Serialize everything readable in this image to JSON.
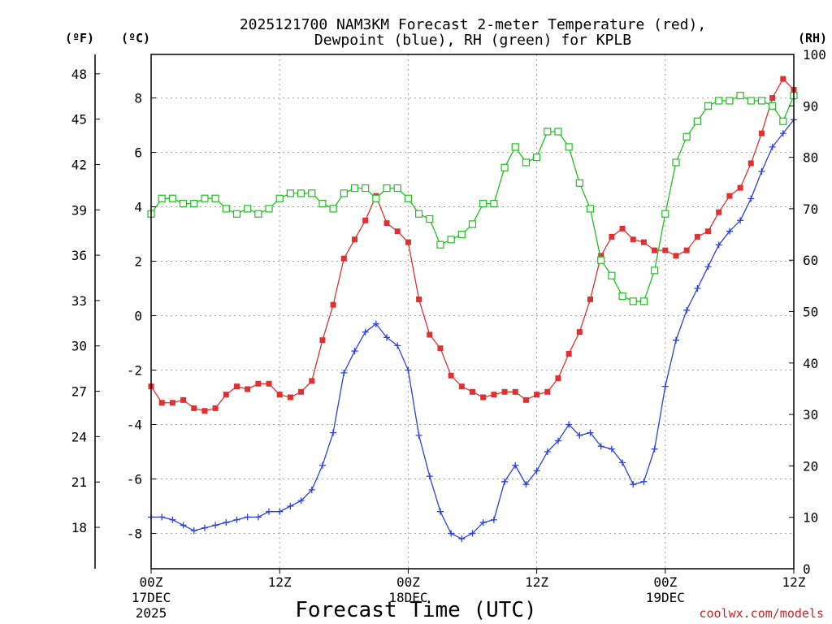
{
  "chart_data": {
    "type": "line",
    "title_line1": "2025121700 NAM3KM Forecast 2-meter Temperature (red),",
    "title_line2": "Dewpoint (blue), RH (green) for KPLB",
    "xlabel": "Forecast Time (UTC)",
    "credit": "coolwx.com/models",
    "units": {
      "fahrenheit": "(ºF)",
      "celsius": "(ºC)",
      "rh": "(RH)"
    },
    "x_range_hours": [
      0,
      60
    ],
    "x_ticks": [
      {
        "hour": 0,
        "label": "00Z",
        "sub1": "17DEC",
        "sub2": "2025"
      },
      {
        "hour": 12,
        "label": "12Z",
        "sub1": "",
        "sub2": ""
      },
      {
        "hour": 24,
        "label": "00Z",
        "sub1": "18DEC",
        "sub2": ""
      },
      {
        "hour": 36,
        "label": "12Z",
        "sub1": "",
        "sub2": ""
      },
      {
        "hour": 48,
        "label": "00Z",
        "sub1": "19DEC",
        "sub2": ""
      },
      {
        "hour": 60,
        "label": "12Z",
        "sub1": "",
        "sub2": ""
      }
    ],
    "ylim_celsius": [
      -9.3,
      9.6
    ],
    "celsius_ticks": [
      -8,
      -6,
      -4,
      -2,
      0,
      2,
      4,
      6,
      8
    ],
    "fahrenheit_ticks": [
      18,
      21,
      24,
      27,
      30,
      33,
      36,
      39,
      42,
      45,
      48
    ],
    "ylim_rh": [
      0,
      100
    ],
    "rh_ticks": [
      0,
      10,
      20,
      30,
      40,
      50,
      60,
      70,
      80,
      90,
      100
    ],
    "series": [
      {
        "name": "Temperature",
        "units": "C",
        "color": "#e03030",
        "marker": "filled-square",
        "hours": [
          0,
          1,
          2,
          3,
          4,
          5,
          6,
          7,
          8,
          9,
          10,
          11,
          12,
          13,
          14,
          15,
          16,
          17,
          18,
          19,
          20,
          21,
          22,
          23,
          24,
          25,
          26,
          27,
          28,
          29,
          30,
          31,
          32,
          33,
          34,
          35,
          36,
          37,
          38,
          39,
          40,
          41,
          42,
          43,
          44,
          45,
          46,
          47,
          48,
          49,
          50,
          51,
          52,
          53,
          54,
          55,
          56,
          57,
          58,
          59,
          60
        ],
        "values": [
          -2.6,
          -3.2,
          -3.2,
          -3.1,
          -3.4,
          -3.5,
          -3.4,
          -2.9,
          -2.6,
          -2.7,
          -2.5,
          -2.5,
          -2.9,
          -3.0,
          -2.8,
          -2.4,
          -0.9,
          0.4,
          2.1,
          2.8,
          3.5,
          4.4,
          3.4,
          3.1,
          2.7,
          0.6,
          -0.7,
          -1.2,
          -2.2,
          -2.6,
          -2.8,
          -3.0,
          -2.9,
          -2.8,
          -2.8,
          -3.1,
          -2.9,
          -2.8,
          -2.3,
          -1.4,
          -0.6,
          0.6,
          2.2,
          2.9,
          3.2,
          2.8,
          2.7,
          2.4,
          2.4,
          2.2,
          2.4,
          2.9,
          3.1,
          3.8,
          4.4,
          4.7,
          5.6,
          6.7,
          8.0,
          8.7,
          8.3
        ]
      },
      {
        "name": "Dewpoint",
        "units": "C",
        "color": "#2a40e0",
        "marker": "plus",
        "hours": [
          0,
          1,
          2,
          3,
          4,
          5,
          6,
          7,
          8,
          9,
          10,
          11,
          12,
          13,
          14,
          15,
          16,
          17,
          18,
          19,
          20,
          21,
          22,
          23,
          24,
          25,
          26,
          27,
          28,
          29,
          30,
          31,
          32,
          33,
          34,
          35,
          36,
          37,
          38,
          39,
          40,
          41,
          42,
          43,
          44,
          45,
          46,
          47,
          48,
          49,
          50,
          51,
          52,
          53,
          54,
          55,
          56,
          57,
          58,
          59,
          60
        ],
        "values": [
          -7.4,
          -7.4,
          -7.5,
          -7.7,
          -7.9,
          -7.8,
          -7.7,
          -7.6,
          -7.5,
          -7.4,
          -7.4,
          -7.2,
          -7.2,
          -7.0,
          -6.8,
          -6.4,
          -5.5,
          -4.3,
          -2.1,
          -1.3,
          -0.6,
          -0.3,
          -0.8,
          -1.1,
          -2.0,
          -4.4,
          -5.9,
          -7.2,
          -8.0,
          -8.2,
          -8.0,
          -7.6,
          -7.5,
          -6.1,
          -5.5,
          -6.2,
          -5.7,
          -5.0,
          -4.6,
          -4.0,
          -4.4,
          -4.3,
          -4.8,
          -4.9,
          -5.4,
          -6.2,
          -6.1,
          -4.9,
          -2.6,
          -0.9,
          0.2,
          1.0,
          1.8,
          2.6,
          3.1,
          3.5,
          4.3,
          5.3,
          6.2,
          6.7,
          7.2
        ]
      },
      {
        "name": "Relative Humidity",
        "units": "%",
        "color": "#20c020",
        "marker": "open-square",
        "hours": [
          0,
          1,
          2,
          3,
          4,
          5,
          6,
          7,
          8,
          9,
          10,
          11,
          12,
          13,
          14,
          15,
          16,
          17,
          18,
          19,
          20,
          21,
          22,
          23,
          24,
          25,
          26,
          27,
          28,
          29,
          30,
          31,
          32,
          33,
          34,
          35,
          36,
          37,
          38,
          39,
          40,
          41,
          42,
          43,
          44,
          45,
          46,
          47,
          48,
          49,
          50,
          51,
          52,
          53,
          54,
          55,
          56,
          57,
          58,
          59,
          60
        ],
        "values": [
          69,
          72,
          72,
          71,
          71,
          72,
          72,
          70,
          69,
          70,
          69,
          70,
          72,
          73,
          73,
          73,
          71,
          70,
          73,
          74,
          74,
          72,
          74,
          74,
          72,
          69,
          68,
          63,
          64,
          65,
          67,
          71,
          71,
          78,
          82,
          79,
          80,
          85,
          85,
          82,
          75,
          70,
          60,
          57,
          53,
          52,
          52,
          58,
          69,
          79,
          84,
          87,
          90,
          91,
          91,
          92,
          91,
          91,
          90,
          87,
          92
        ]
      }
    ]
  }
}
